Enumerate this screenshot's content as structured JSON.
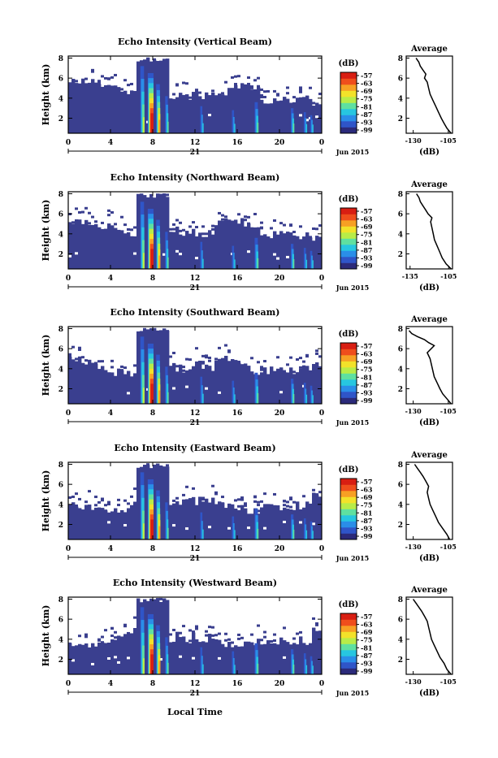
{
  "figure": {
    "date_label": "Jun 2015",
    "day_label": "21",
    "xlabel": "Local Time",
    "colorbar_unit": "(dB)",
    "average_title": "Average",
    "average_xlabel": "(dB)",
    "ylabel": "Height (km)"
  },
  "colors": {
    "background_echo": "#3a3f8f",
    "colorbar": [
      "#2b2a7a",
      "#2f55c8",
      "#2a8ee8",
      "#27c6e0",
      "#5fe0a0",
      "#b8ec48",
      "#f2e22a",
      "#f7a024",
      "#ef4e1c",
      "#d81e12"
    ]
  },
  "chart_data": [
    {
      "type": "heatmap",
      "title": "Echo Intensity (Vertical Beam)",
      "ylabel": "Height (km)",
      "x_ticks": [
        "0",
        "4",
        "8",
        "12",
        "16",
        "20",
        "0"
      ],
      "xlim": [
        0,
        24
      ],
      "y_ticks": [
        "2",
        "4",
        "6",
        "8"
      ],
      "ylim": [
        0.5,
        8.2
      ],
      "colorbar_ticks": [
        "-57",
        "-63",
        "-69",
        "-75",
        "-81",
        "-87",
        "-93",
        "-99"
      ],
      "average": {
        "title": "Average",
        "xlabel": "(dB)",
        "x_ticks": [
          "-130",
          "-105"
        ],
        "xlim": [
          -135,
          -102
        ],
        "y_ticks": [
          "2",
          "4",
          "6",
          "8"
        ],
        "ylim": [
          0.5,
          8.2
        ],
        "profile": [
          [
            -103,
            0.5
          ],
          [
            -106,
            1.0
          ],
          [
            -108,
            1.5
          ],
          [
            -110,
            2.0
          ],
          [
            -112,
            2.6
          ],
          [
            -114,
            3.2
          ],
          [
            -116,
            3.8
          ],
          [
            -118,
            4.4
          ],
          [
            -119,
            5.0
          ],
          [
            -120,
            5.6
          ],
          [
            -122,
            6.0
          ],
          [
            -121,
            6.4
          ],
          [
            -123,
            6.8
          ],
          [
            -125,
            7.2
          ],
          [
            -126,
            7.6
          ],
          [
            -128,
            8.0
          ]
        ]
      }
    },
    {
      "type": "heatmap",
      "title": "Echo Intensity (Northward Beam)",
      "ylabel": "Height (km)",
      "x_ticks": [
        "0",
        "4",
        "8",
        "12",
        "16",
        "20",
        "0"
      ],
      "xlim": [
        0,
        24
      ],
      "y_ticks": [
        "2",
        "4",
        "6",
        "8"
      ],
      "ylim": [
        0.5,
        8.2
      ],
      "colorbar_ticks": [
        "-57",
        "-63",
        "-69",
        "-75",
        "-81",
        "-87",
        "-93",
        "-99"
      ],
      "average": {
        "title": "Average",
        "xlabel": "(dB)",
        "x_ticks": [
          "-135",
          "-105"
        ],
        "xlim": [
          -138,
          -102
        ],
        "y_ticks": [
          "2",
          "4",
          "6",
          "8"
        ],
        "ylim": [
          0.5,
          8.2
        ],
        "profile": [
          [
            -103,
            0.5
          ],
          [
            -107,
            1.0
          ],
          [
            -110,
            1.6
          ],
          [
            -112,
            2.2
          ],
          [
            -114,
            2.8
          ],
          [
            -116,
            3.4
          ],
          [
            -117,
            4.0
          ],
          [
            -118,
            4.6
          ],
          [
            -119,
            5.2
          ],
          [
            -118,
            5.6
          ],
          [
            -121,
            6.0
          ],
          [
            -123,
            6.4
          ],
          [
            -125,
            6.8
          ],
          [
            -127,
            7.2
          ],
          [
            -128,
            7.6
          ],
          [
            -130,
            8.0
          ]
        ]
      }
    },
    {
      "type": "heatmap",
      "title": "Echo Intensity (Southward Beam)",
      "ylabel": "Height (km)",
      "x_ticks": [
        "0",
        "4",
        "8",
        "12",
        "16",
        "20",
        "0"
      ],
      "xlim": [
        0,
        24
      ],
      "y_ticks": [
        "2",
        "4",
        "6",
        "8"
      ],
      "ylim": [
        0.5,
        8.2
      ],
      "colorbar_ticks": [
        "-57",
        "-63",
        "-69",
        "-75",
        "-81",
        "-87",
        "-93",
        "-99"
      ],
      "average": {
        "title": "Average",
        "xlabel": "(dB)",
        "x_ticks": [
          "-130",
          "-105"
        ],
        "xlim": [
          -135,
          -102
        ],
        "y_ticks": [
          "2",
          "4",
          "6",
          "8"
        ],
        "ylim": [
          0.5,
          8.2
        ],
        "profile": [
          [
            -103,
            0.5
          ],
          [
            -106,
            1.0
          ],
          [
            -109,
            1.5
          ],
          [
            -111,
            2.0
          ],
          [
            -113,
            2.6
          ],
          [
            -115,
            3.2
          ],
          [
            -116,
            3.8
          ],
          [
            -117,
            4.4
          ],
          [
            -118,
            5.0
          ],
          [
            -120,
            5.6
          ],
          [
            -115,
            6.3
          ],
          [
            -119,
            6.6
          ],
          [
            -122,
            6.9
          ],
          [
            -127,
            7.2
          ],
          [
            -131,
            7.5
          ],
          [
            -133,
            7.8
          ]
        ]
      }
    },
    {
      "type": "heatmap",
      "title": "Echo Intensity (Eastward Beam)",
      "ylabel": "Height (km)",
      "x_ticks": [
        "0",
        "4",
        "8",
        "12",
        "16",
        "20",
        "0"
      ],
      "xlim": [
        0,
        24
      ],
      "y_ticks": [
        "2",
        "4",
        "6",
        "8"
      ],
      "ylim": [
        0.5,
        8.2
      ],
      "colorbar_ticks": [
        "-57",
        "-63",
        "-69",
        "-75",
        "-81",
        "-87",
        "-93",
        "-99"
      ],
      "average": {
        "title": "Average",
        "xlabel": "(dB)",
        "x_ticks": [
          "-130",
          "-105"
        ],
        "xlim": [
          -135,
          -102
        ],
        "y_ticks": [
          "2",
          "4",
          "6",
          "8"
        ],
        "ylim": [
          0.5,
          8.2
        ],
        "profile": [
          [
            -104,
            0.5
          ],
          [
            -106,
            1.0
          ],
          [
            -109,
            1.6
          ],
          [
            -112,
            2.2
          ],
          [
            -114,
            2.8
          ],
          [
            -116,
            3.4
          ],
          [
            -118,
            4.0
          ],
          [
            -119,
            4.6
          ],
          [
            -120,
            5.2
          ],
          [
            -119,
            5.8
          ],
          [
            -121,
            6.3
          ],
          [
            -123,
            6.8
          ],
          [
            -125,
            7.2
          ],
          [
            -127,
            7.6
          ],
          [
            -129,
            8.0
          ]
        ]
      }
    },
    {
      "type": "heatmap",
      "title": "Echo Intensity (Westward Beam)",
      "ylabel": "Height (km)",
      "x_ticks": [
        "0",
        "4",
        "8",
        "12",
        "16",
        "20",
        "0"
      ],
      "xlim": [
        0,
        24
      ],
      "y_ticks": [
        "2",
        "4",
        "6",
        "8"
      ],
      "ylim": [
        0.5,
        8.2
      ],
      "colorbar_ticks": [
        "-57",
        "-63",
        "-69",
        "-75",
        "-81",
        "-87",
        "-93",
        "-99"
      ],
      "average": {
        "title": "Average",
        "xlabel": "(dB)",
        "x_ticks": [
          "-130",
          "-105"
        ],
        "xlim": [
          -135,
          -102
        ],
        "y_ticks": [
          "2",
          "4",
          "6",
          "8"
        ],
        "ylim": [
          0.5,
          8.2
        ],
        "profile": [
          [
            -103,
            0.5
          ],
          [
            -106,
            1.0
          ],
          [
            -108,
            1.6
          ],
          [
            -111,
            2.2
          ],
          [
            -113,
            2.8
          ],
          [
            -115,
            3.4
          ],
          [
            -117,
            4.0
          ],
          [
            -118,
            4.6
          ],
          [
            -119,
            5.2
          ],
          [
            -120,
            5.8
          ],
          [
            -122,
            6.3
          ],
          [
            -124,
            6.8
          ],
          [
            -126,
            7.2
          ],
          [
            -128,
            7.6
          ],
          [
            -130,
            8.0
          ]
        ]
      }
    }
  ]
}
